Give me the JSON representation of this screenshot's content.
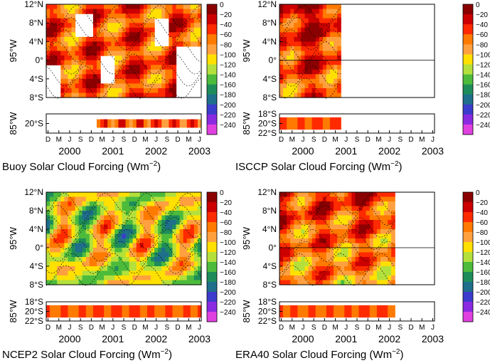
{
  "figure": {
    "time_axis": {
      "month_ticks": [
        "D",
        "M",
        "J",
        "S",
        "D",
        "M",
        "J",
        "S",
        "D",
        "M",
        "J",
        "S",
        "D",
        "M",
        "J"
      ],
      "years": [
        "2000",
        "2001",
        "2002",
        "2003"
      ]
    },
    "upper_lat_ticks": [
      "12°N",
      "8°N",
      "4°N",
      "0°",
      "4°S",
      "8°S"
    ],
    "lower_lat_ticks": [
      "18°S",
      "20°S",
      "22°S"
    ],
    "colorbar": {
      "levels": [
        0,
        -20,
        -40,
        -60,
        -80,
        -100,
        -120,
        -140,
        -160,
        -180,
        -200,
        -220,
        -240
      ],
      "labels": [
        "0",
        "−20",
        "−40",
        "−60",
        "−80",
        "−100",
        "−120",
        "−140",
        "−160",
        "−180",
        "−200",
        "−220",
        "−240"
      ],
      "colors": [
        "#8b0000",
        "#cc0000",
        "#ff2a00",
        "#ff7a00",
        "#ffa040",
        "#ffe000",
        "#b4e03c",
        "#4cbb3c",
        "#1e8c5a",
        "#1e6e8c",
        "#3c3ccc",
        "#8a2be2",
        "#e040e0"
      ]
    }
  },
  "chart_data": [
    {
      "type": "heatmap",
      "title": "Buoy Solar Cloud Forcing (Wm",
      "title_sup": "−2",
      "title_end": ")",
      "upper_ylabel": "95°W",
      "lower_ylabel": "85°W",
      "lower_lat_ticks": [
        "20°S"
      ],
      "data_coverage_months": [
        0,
        43
      ],
      "zero_line": false,
      "mean_forcing_wm2": -60,
      "lower_strip_range_wm2": [
        -90,
        -30
      ]
    },
    {
      "type": "heatmap",
      "title": "ISCCP Solar Cloud Forcing (Wm",
      "title_sup": "−2",
      "title_end": ")",
      "upper_ylabel": "95°W",
      "lower_ylabel": "85°W",
      "lower_lat_ticks": [
        "18°S",
        "20°S",
        "22°S"
      ],
      "data_coverage_months": [
        0,
        17
      ],
      "zero_line": true,
      "mean_forcing_wm2": -50,
      "lower_strip_range_wm2": [
        -80,
        -40
      ]
    },
    {
      "type": "heatmap",
      "title": "NCEP2 Solar Cloud Forcing (Wm",
      "title_sup": "−2",
      "title_end": ")",
      "upper_ylabel": "95°W",
      "lower_ylabel": "85°W",
      "lower_lat_ticks": [
        "18°S",
        "20°S",
        "22°S"
      ],
      "data_coverage_months": [
        0,
        43
      ],
      "zero_line": false,
      "mean_forcing_wm2": -120,
      "lower_strip_range_wm2": [
        -80,
        -40
      ]
    },
    {
      "type": "heatmap",
      "title": "ERA40 Solar Cloud Forcing (Wm",
      "title_sup": "−2",
      "title_end": ")",
      "upper_ylabel": "95°W",
      "lower_ylabel": "85°W",
      "lower_lat_ticks": [
        "18°S",
        "20°S",
        "22°S"
      ],
      "data_coverage_months": [
        0,
        32
      ],
      "zero_line": true,
      "mean_forcing_wm2": -70,
      "lower_strip_range_wm2": [
        -80,
        -40
      ]
    }
  ]
}
